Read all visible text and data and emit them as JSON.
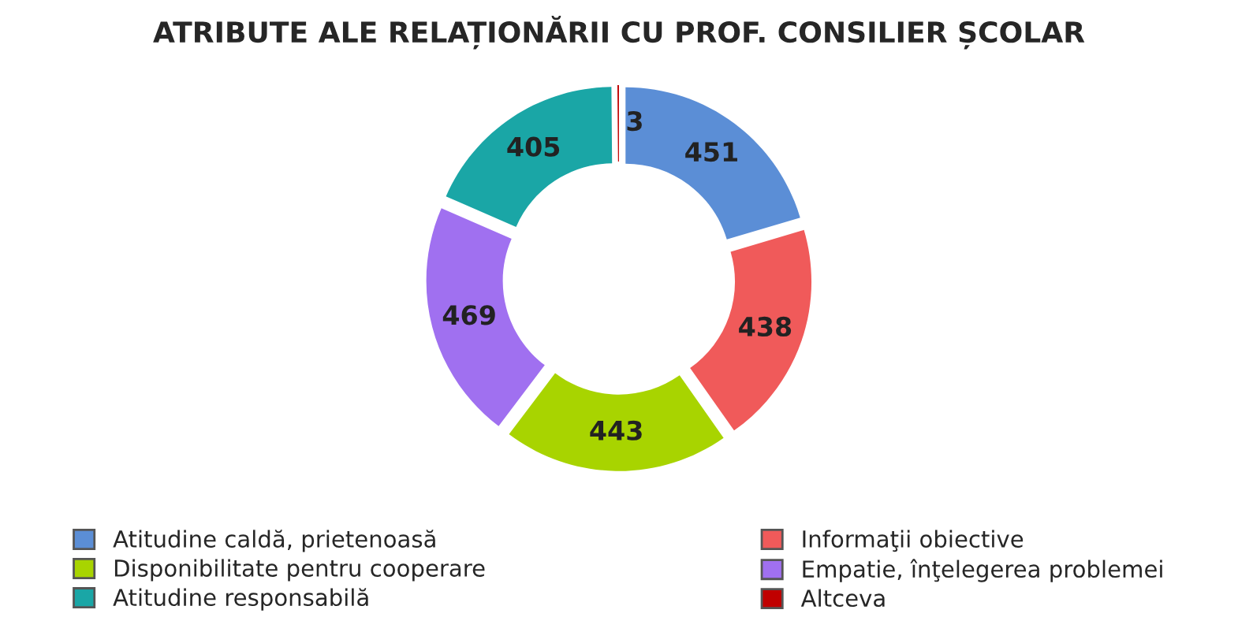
{
  "chart_data": {
    "type": "donut",
    "title": "ATRIBUTE ALE RELAȚIONĂRII CU PROF. CONSILIER ȘCOLAR",
    "categories": [
      "Atitudine caldă, prietenoasă",
      "Informaţii obiective",
      "Disponibilitate pentru cooperare",
      "Empatie, înţelegerea problemei",
      "Atitudine responsabilă",
      "Altceva"
    ],
    "values": [
      451,
      438,
      443,
      469,
      405,
      3
    ],
    "colors": [
      "#5b8ed6",
      "#f05a5a",
      "#a8d400",
      "#a070f0",
      "#1aa6a6",
      "#c00000"
    ],
    "data_labels": true,
    "legend": "bottom"
  }
}
